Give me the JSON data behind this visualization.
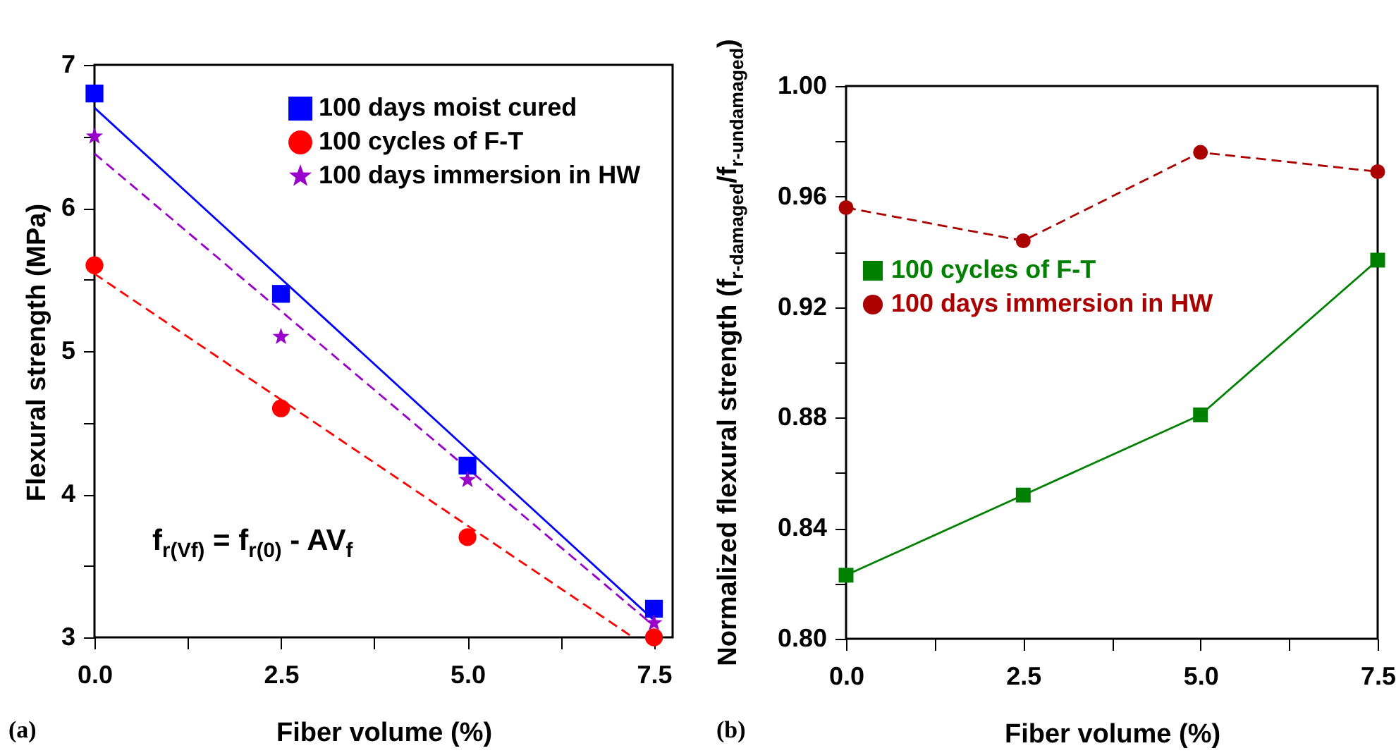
{
  "chart_data": [
    {
      "type": "scatter",
      "xlabel": "Fiber volume (%)",
      "ylabel": "Flexural strength (MPa)",
      "xlim": [
        0,
        7.75
      ],
      "ylim": [
        3,
        7
      ],
      "xticks": [
        {
          "value": 0,
          "label": "0.0"
        },
        {
          "value": 1.25,
          "label": null
        },
        {
          "value": 2.5,
          "label": "2.5"
        },
        {
          "value": 3.75,
          "label": null
        },
        {
          "value": 5,
          "label": "5.0"
        },
        {
          "value": 6.25,
          "label": null
        },
        {
          "value": 7.5,
          "label": "7.5"
        }
      ],
      "yticks": [
        3,
        {
          "value": 3.5,
          "label": null
        },
        4,
        {
          "value": 4.5,
          "label": null
        },
        5,
        {
          "value": 5.5,
          "label": null
        },
        6,
        {
          "value": 6.5,
          "label": null
        },
        7
      ],
      "x": [
        0,
        2.5,
        5,
        7.5
      ],
      "series": [
        {
          "name": "100 days moist cured",
          "marker": "square",
          "color": "#0000ff",
          "values": [
            6.8,
            5.4,
            4.2,
            3.2
          ]
        },
        {
          "name": "100 cycles of F-T",
          "marker": "circle",
          "color": "#ff0000",
          "values": [
            5.6,
            4.6,
            3.7,
            3.0
          ]
        },
        {
          "name": "100 days immersion in HW",
          "marker": "star",
          "color": "#9900cc",
          "values": [
            6.5,
            5.1,
            4.1,
            3.1
          ]
        },
        {
          "type": "line",
          "color": "#0000ff",
          "line_style": "solid",
          "x": [
            0,
            7.5
          ],
          "values": [
            6.7,
            3.12
          ]
        },
        {
          "type": "line",
          "color": "#9900cc",
          "line_style": "dashed",
          "x": [
            0,
            7.5
          ],
          "values": [
            6.38,
            3.08
          ]
        },
        {
          "type": "line",
          "color": "#ff0000",
          "line_style": "dashed",
          "x": [
            0,
            7.22
          ],
          "values": [
            5.54,
            3.0
          ]
        }
      ],
      "legend": "top right",
      "grid": false,
      "annotations": [
        "f$_{r(Vf)}$ = f$_{r(0)}$ - AV$_{f}$",
        "(a)"
      ]
    },
    {
      "type": "line",
      "xlabel": "Fiber volume (%)",
      "ylabel": "Normalized flexural strength (f$_{r-damaged}$/f$_{r-undamaged}$)",
      "xlim": [
        0,
        7.5
      ],
      "ylim": [
        0.8,
        1.0
      ],
      "xticks": [
        {
          "value": 0,
          "label": "0.0"
        },
        {
          "value": 1.25,
          "label": null
        },
        {
          "value": 2.5,
          "label": "2.5"
        },
        {
          "value": 3.75,
          "label": null
        },
        {
          "value": 5,
          "label": "5.0"
        },
        {
          "value": 6.25,
          "label": null
        },
        {
          "value": 7.5,
          "label": "7.5"
        }
      ],
      "yticks": [
        {
          "value": 0.8,
          "label": "0.80"
        },
        {
          "value": 0.82,
          "label": null
        },
        {
          "value": 0.84,
          "label": "0.84"
        },
        {
          "value": 0.86,
          "label": null
        },
        {
          "value": 0.88,
          "label": "0.88"
        },
        {
          "value": 0.9,
          "label": null
        },
        {
          "value": 0.92,
          "label": "0.92"
        },
        {
          "value": 0.94,
          "label": null
        },
        {
          "value": 0.96,
          "label": "0.96"
        },
        {
          "value": 0.98,
          "label": null
        },
        {
          "value": 1.0,
          "label": "1.00"
        }
      ],
      "x": [
        0,
        2.5,
        5,
        7.5
      ],
      "series": [
        {
          "name": "100 cycles of F-T",
          "marker": "square",
          "line_style": "solid",
          "color": "#008000",
          "values": [
            0.823,
            0.852,
            0.881,
            0.937
          ]
        },
        {
          "name": "100 days immersion in HW",
          "marker": "circle",
          "line_style": "dashed",
          "color": "#aa0000",
          "values": [
            0.956,
            0.944,
            0.976,
            0.969
          ]
        }
      ],
      "legend": "left",
      "grid": false,
      "annotations": [
        "(b)"
      ]
    }
  ]
}
